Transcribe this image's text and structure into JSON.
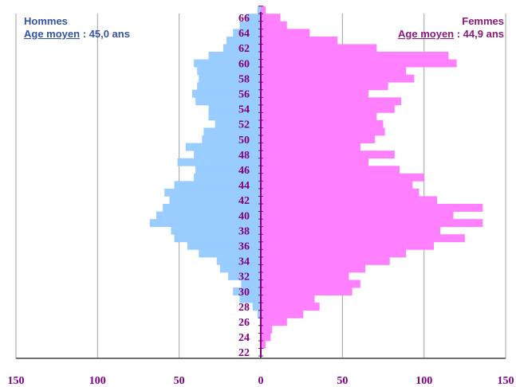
{
  "chart_data": {
    "type": "bar",
    "orientation": "horizontal",
    "subtype": "population-pyramid",
    "ages": [
      22,
      23,
      24,
      25,
      26,
      27,
      28,
      29,
      30,
      31,
      32,
      33,
      34,
      35,
      36,
      37,
      38,
      39,
      40,
      41,
      42,
      43,
      44,
      45,
      46,
      47,
      48,
      49,
      50,
      51,
      52,
      53,
      54,
      55,
      56,
      57,
      58,
      59,
      60,
      61,
      62,
      63,
      64,
      65,
      66,
      67
    ],
    "age_tick_labels": [
      "22",
      "24",
      "26",
      "28",
      "30",
      "32",
      "34",
      "36",
      "38",
      "40",
      "42",
      "44",
      "46",
      "48",
      "50",
      "52",
      "54",
      "56",
      "58",
      "60",
      "62",
      "64",
      "66"
    ],
    "x_tick_labels": [
      "150",
      "100",
      "50",
      "0",
      "50",
      "100",
      "150"
    ],
    "xlim": [
      -150,
      150
    ],
    "grid": "vertical",
    "series": [
      {
        "name": "Hommes",
        "legend_title": "Hommes",
        "legend_prefix": "Age moyen",
        "legend_value": " : 45,0 ans",
        "side": "left",
        "color": "#99ccff",
        "values": [
          0,
          0,
          0,
          0,
          0,
          2,
          5,
          13,
          17,
          12,
          20,
          25,
          27,
          38,
          45,
          53,
          55,
          68,
          64,
          60,
          56,
          59,
          53,
          41,
          40,
          51,
          41,
          46,
          36,
          35,
          28,
          32,
          32,
          40,
          42,
          39,
          38,
          39,
          41,
          32,
          23,
          21,
          17,
          13,
          9,
          2
        ]
      },
      {
        "name": "Femmes",
        "legend_title": "Femmes",
        "legend_prefix": "Age moyen",
        "legend_value": " : 44,9  ans",
        "side": "right",
        "color": "#ff80ff",
        "values": [
          0,
          3,
          6,
          7,
          16,
          26,
          36,
          33,
          56,
          61,
          54,
          64,
          79,
          89,
          106,
          125,
          110,
          136,
          118,
          136,
          108,
          97,
          93,
          100,
          85,
          66,
          82,
          61,
          70,
          76,
          75,
          71,
          82,
          86,
          66,
          78,
          94,
          89,
          120,
          115,
          71,
          47,
          30,
          16,
          12,
          3
        ]
      }
    ]
  }
}
